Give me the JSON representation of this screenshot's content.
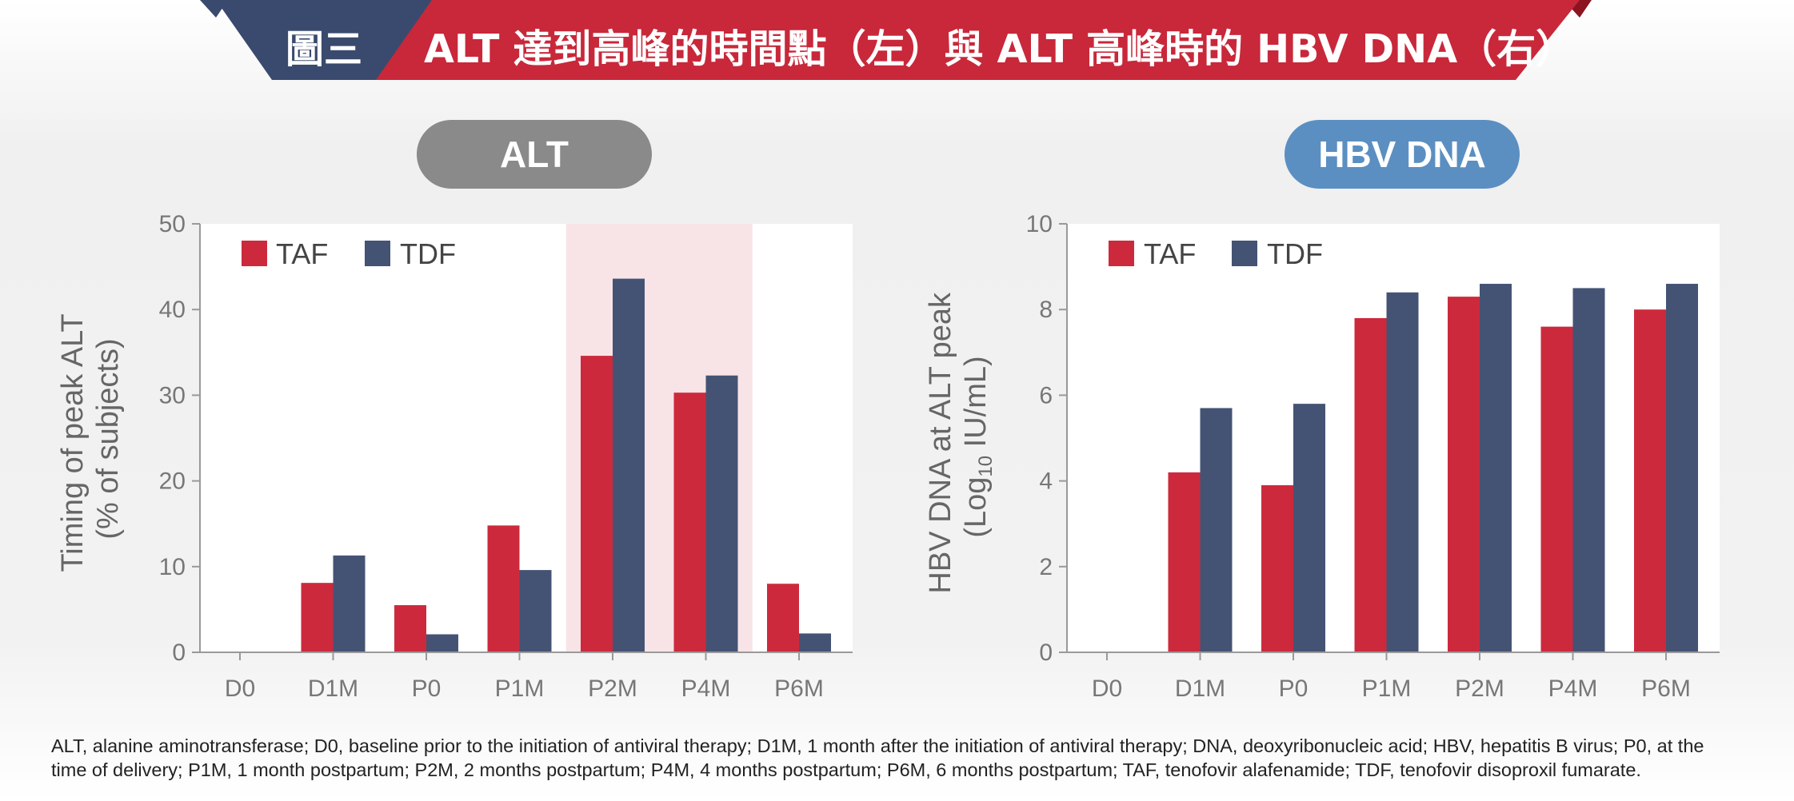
{
  "banner": {
    "label": "圖三",
    "title": "ALT 達到高峰的時間點（左）與 ALT 高峰時的 HBV DNA（右）",
    "colors": {
      "dark": "#3a4a6e",
      "red": "#c8283a",
      "darkred": "#8c1420"
    }
  },
  "colors": {
    "TAF": "#cc2a3c",
    "TDF": "#445374",
    "highlight": "#f8e4e7",
    "axis": "#999999"
  },
  "chart_data": [
    {
      "type": "bar",
      "panel_label": "ALT",
      "categories": [
        "D0",
        "D1M",
        "P0",
        "P1M",
        "P2M",
        "P4M",
        "P6M"
      ],
      "series": [
        {
          "name": "TAF",
          "values": [
            0,
            8.1,
            5.5,
            14.8,
            34.6,
            30.3,
            8.0
          ]
        },
        {
          "name": "TDF",
          "values": [
            0,
            11.3,
            2.1,
            9.6,
            43.6,
            32.3,
            2.2
          ]
        }
      ],
      "ylabel_line1": "Timing of peak ALT",
      "ylabel_line2": "(% of subjects)",
      "ylim": [
        0,
        50
      ],
      "yticks": [
        0,
        10,
        20,
        30,
        40,
        50
      ],
      "highlight_categories": [
        "P2M",
        "P4M"
      ],
      "legend": "top-left",
      "grid": false
    },
    {
      "type": "bar",
      "panel_label": "HBV DNA",
      "categories": [
        "D0",
        "D1M",
        "P0",
        "P1M",
        "P2M",
        "P4M",
        "P6M"
      ],
      "series": [
        {
          "name": "TAF",
          "values": [
            0,
            4.2,
            3.9,
            7.8,
            8.3,
            7.6,
            8.0
          ]
        },
        {
          "name": "TDF",
          "values": [
            0,
            5.7,
            5.8,
            8.4,
            8.6,
            8.5,
            8.6
          ]
        }
      ],
      "ylabel_line1": "HBV DNA at ALT peak",
      "ylabel_line2_pre": "(Log",
      "ylabel_line2_sub": "10",
      "ylabel_line2_post": " IU/mL)",
      "ylim": [
        0,
        10
      ],
      "yticks": [
        0,
        2,
        4,
        6,
        8,
        10
      ],
      "legend": "top-left",
      "grid": false
    }
  ],
  "footnote": {
    "line1": "ALT, alanine aminotransferase; D0, baseline prior to the initiation of antiviral therapy; D1M, 1 month after the initiation of antiviral therapy; DNA, deoxyribonucleic acid; HBV, hepatitis B virus; P0, at the",
    "line2": "time of delivery; P1M, 1 month postpartum; P2M, 2 months postpartum; P4M, 4 months postpartum; P6M, 6 months postpartum; TAF, tenofovir alafenamide; TDF, tenofovir disoproxil fumarate."
  }
}
